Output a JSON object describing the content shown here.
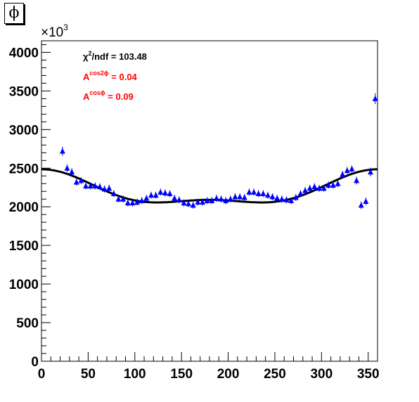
{
  "title_box": "ϕ",
  "colors": {
    "points": "#0000ff",
    "fit": "#000000",
    "asym": "#ff0000",
    "text": "#000000"
  },
  "y_multiplier": {
    "base": "×10",
    "exp": "3"
  },
  "stats": {
    "chi2": {
      "symbol": "χ",
      "exp": "2",
      "rest": "/ndf = 103.48"
    },
    "a_cos2phi": {
      "base": "A",
      "exp": "cos2ϕ",
      "rest": " = 0.04"
    },
    "a_cosphi": {
      "base": "A",
      "exp": "cosϕ",
      "rest": " = 0.09"
    }
  },
  "chart_data": {
    "type": "scatter",
    "xlim": [
      0,
      360
    ],
    "ylim": [
      0,
      4150
    ],
    "x_ticks": [
      "0",
      "50",
      "100",
      "150",
      "200",
      "250",
      "300",
      "350"
    ],
    "y_ticks": [
      "0",
      "500",
      "1000",
      "1500",
      "2000",
      "2500",
      "3000",
      "3500",
      "4000"
    ],
    "y_units_note": "×10^3",
    "series": [
      {
        "marker": "triangle",
        "x": [
          22.5,
          27.5,
          32.5,
          37.5,
          42.5,
          47.5,
          52.5,
          57.5,
          62.5,
          67.5,
          72.5,
          77.5,
          82.5,
          87.5,
          92.5,
          97.5,
          102.5,
          107.5,
          112.5,
          117.5,
          122.5,
          127.5,
          132.5,
          137.5,
          142.5,
          147.5,
          152.5,
          157.5,
          162.5,
          167.5,
          172.5,
          177.5,
          182.5,
          187.5,
          192.5,
          197.5,
          202.5,
          207.5,
          212.5,
          217.5,
          222.5,
          227.5,
          232.5,
          237.5,
          242.5,
          247.5,
          252.5,
          257.5,
          262.5,
          267.5,
          272.5,
          277.5,
          282.5,
          287.5,
          292.5,
          297.5,
          302.5,
          307.5,
          312.5,
          317.5,
          322.5,
          327.5,
          332.5,
          337.5,
          342.5,
          347.5,
          352.5,
          357.5
        ],
        "y": [
          2720,
          2500,
          2450,
          2320,
          2340,
          2270,
          2270,
          2270,
          2260,
          2230,
          2240,
          2170,
          2100,
          2100,
          2050,
          2050,
          2060,
          2080,
          2110,
          2150,
          2150,
          2190,
          2180,
          2170,
          2110,
          2090,
          2050,
          2040,
          2020,
          2060,
          2060,
          2080,
          2080,
          2110,
          2100,
          2080,
          2100,
          2130,
          2130,
          2120,
          2190,
          2190,
          2170,
          2170,
          2150,
          2130,
          2110,
          2100,
          2090,
          2080,
          2120,
          2170,
          2210,
          2240,
          2260,
          2240,
          2240,
          2280,
          2280,
          2300,
          2420,
          2470,
          2490,
          2340,
          2020,
          2070,
          2450,
          3400
        ],
        "err": [
          60,
          50,
          50,
          45,
          45,
          45,
          45,
          45,
          45,
          45,
          45,
          45,
          45,
          45,
          45,
          45,
          45,
          45,
          45,
          45,
          45,
          45,
          45,
          45,
          45,
          45,
          45,
          45,
          45,
          45,
          45,
          45,
          45,
          45,
          45,
          45,
          45,
          45,
          45,
          45,
          45,
          45,
          45,
          45,
          45,
          45,
          45,
          45,
          45,
          45,
          45,
          45,
          45,
          45,
          45,
          45,
          45,
          45,
          45,
          45,
          45,
          45,
          45,
          50,
          50,
          50,
          55,
          70
        ]
      }
    ],
    "fit": {
      "type": "line",
      "form": "p0*(1 + A_cosphi*cos(phi) + A_cos2phi*cos(2phi))",
      "p0": 2200,
      "A_cosphi": 0.09,
      "A_cos2phi": 0.04,
      "x_range": [
        0,
        360
      ]
    }
  }
}
